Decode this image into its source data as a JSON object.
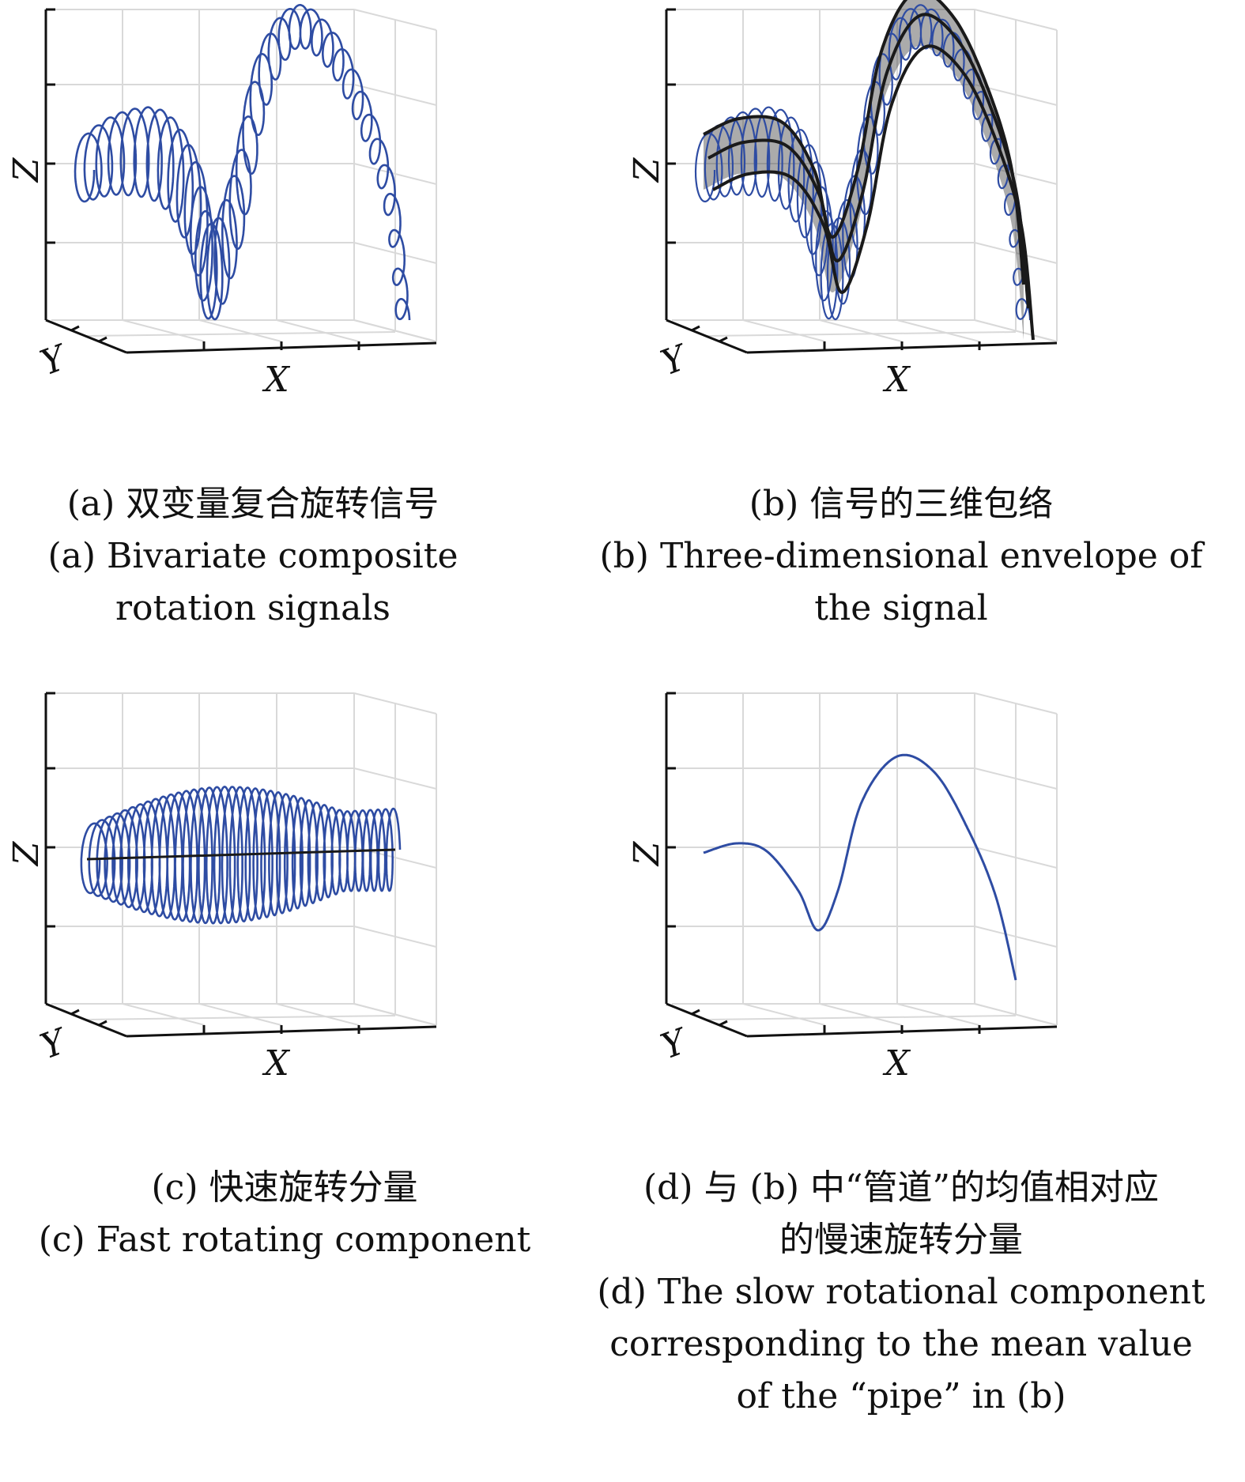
{
  "colors": {
    "signal": "#2e4ca3",
    "mean": "#1a1a1a",
    "envelope": "#444444",
    "grid": "#d9d9d9"
  },
  "panels": [
    {
      "id": "a",
      "caption_cn": "(a) 双变量复合旋转信号",
      "caption_en": [
        "(a) Bivariate composite",
        "rotation signals"
      ],
      "xlabel": "X",
      "ylabel": "Y",
      "zlabel": "Z"
    },
    {
      "id": "b",
      "caption_cn": "(b) 信号的三维包络",
      "caption_en": [
        "(b) Three-dimensional envelope of",
        "the signal"
      ],
      "xlabel": "X",
      "ylabel": "Y",
      "zlabel": "Z"
    },
    {
      "id": "c",
      "caption_cn": "(c) 快速旋转分量",
      "caption_en": [
        "(c) Fast rotating component"
      ],
      "xlabel": "X",
      "ylabel": "Y",
      "zlabel": "Z"
    },
    {
      "id": "d",
      "caption_cn": "(d) 与 (b) 中“管道”的均值相对应",
      "caption_cn2": "的慢速旋转分量",
      "caption_en": [
        "(d) The slow rotational component",
        "corresponding to the mean value",
        "of the “pipe” in (b)"
      ],
      "xlabel": "X",
      "ylabel": "Y",
      "zlabel": "Z"
    }
  ],
  "chart_data": [
    {
      "type": "line",
      "panel": "a",
      "mode": "3d-helix",
      "description_series": [
        {
          "values": []
        }
      ],
      "x_range": [
        0,
        1
      ],
      "z_range": [
        -1,
        1
      ],
      "grid": true
    },
    {
      "type": "line",
      "panel": "b",
      "mode": "3d-envelope",
      "grid": true
    },
    {
      "type": "line",
      "panel": "c",
      "mode": "3d-helix-flat",
      "grid": true
    },
    {
      "type": "line",
      "panel": "d",
      "mode": "3d-mean-curve",
      "grid": true
    }
  ]
}
